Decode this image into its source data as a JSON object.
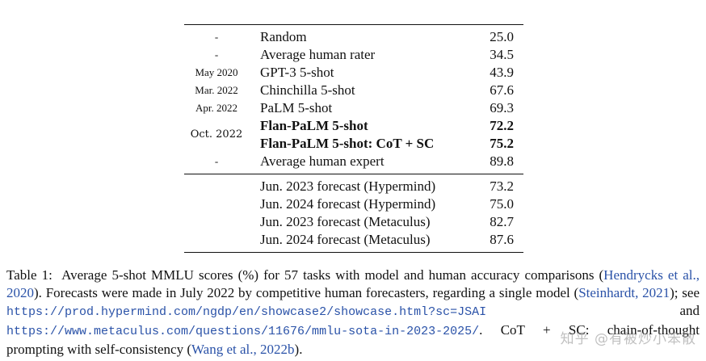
{
  "table": {
    "rows_top": [
      {
        "date": "-",
        "model": "Random",
        "score": "25.0",
        "bold": false
      },
      {
        "date": "-",
        "model": "Average human rater",
        "score": "34.5",
        "bold": false
      },
      {
        "date": "May 2020",
        "model": "GPT-3 5-shot",
        "score": "43.9",
        "bold": false
      },
      {
        "date": "Mar. 2022",
        "model": "Chinchilla 5-shot",
        "score": "67.6",
        "bold": false
      },
      {
        "date": "Apr. 2022",
        "model": "PaLM 5-shot",
        "score": "69.3",
        "bold": false
      }
    ],
    "oct_group": {
      "date": "Oct. 2022",
      "rows": [
        {
          "model": "Flan-PaLM 5-shot",
          "score": "72.2"
        },
        {
          "model": "Flan-PaLM 5-shot: CoT + SC",
          "score": "75.2"
        }
      ]
    },
    "row_expert": {
      "date": "-",
      "model": "Average human expert",
      "score": "89.8"
    },
    "forecasts": [
      {
        "model": "Jun. 2023 forecast (Hypermind)",
        "score": "73.2"
      },
      {
        "model": "Jun. 2024 forecast (Hypermind)",
        "score": "75.0"
      },
      {
        "model": "Jun. 2023 forecast (Metaculus)",
        "score": "82.7"
      },
      {
        "model": "Jun. 2024 forecast (Metaculus)",
        "score": "87.6"
      }
    ]
  },
  "caption": {
    "label": "Table 1:",
    "text1": "Average 5-shot MMLU scores (%) for 57 tasks with model and human accuracy comparisons (",
    "cite1": "Hendrycks et al., 2020",
    "text2": "). Forecasts were made in July 2022 by competitive human forecasters, regarding a single model (",
    "cite2": "Steinhardt, 2021",
    "text3": "); see ",
    "url1": "https://prod.hypermind.com/ngdp/en/showcase2/showcase.html?sc=JSAI",
    "text4": " and ",
    "url2": "https://www.metaculus.com/questions/11676/mmlu-sota-in-2023-2025/",
    "text5": ". CoT + SC: chain-of-thought prompting with self-consistency (",
    "cite3": "Wang et al., 2022b",
    "text6": ")."
  },
  "watermark": "知乎 @有被炒小笨散"
}
